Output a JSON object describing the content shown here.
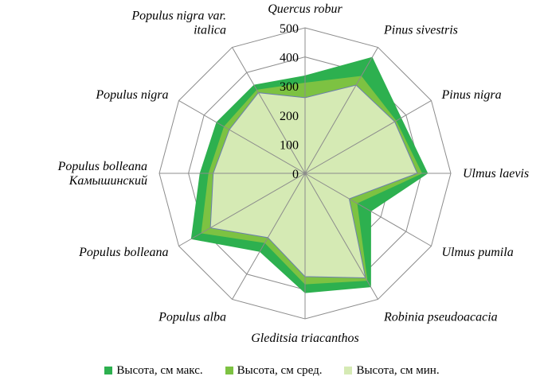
{
  "chart_data": {
    "type": "radar",
    "categories": [
      "Quercus robur",
      "Pinus sivestris",
      "Pinus nigra",
      "Ulmus laevis",
      "Ulmus pumila",
      "Robinia pseudoacacia",
      "Gleditsia triacanthos",
      "Populus alba",
      "Populus bolleana",
      [
        "Populus bolleana",
        "Камышинский"
      ],
      "Populus nigra",
      [
        "Populus nigra var.",
        "italica"
      ]
    ],
    "rlim": [
      0,
      500
    ],
    "ticks": [
      0,
      100,
      200,
      300,
      400,
      500
    ],
    "grid": true,
    "legend_position": "bottom",
    "series": [
      {
        "name": "Высота, см макс.",
        "color": "#2db04f",
        "values": [
          335,
          460,
          380,
          420,
          260,
          450,
          410,
          310,
          450,
          360,
          350,
          350
        ]
      },
      {
        "name": "Высота, см сред.",
        "color": "#7dc242",
        "values": [
          310,
          385,
          360,
          400,
          205,
          425,
          380,
          275,
          410,
          330,
          320,
          330
        ]
      },
      {
        "name": "Высота, см мин.",
        "color": "#d5eab4",
        "values": [
          260,
          350,
          355,
          385,
          175,
          415,
          355,
          255,
          375,
          315,
          300,
          320
        ]
      }
    ]
  }
}
